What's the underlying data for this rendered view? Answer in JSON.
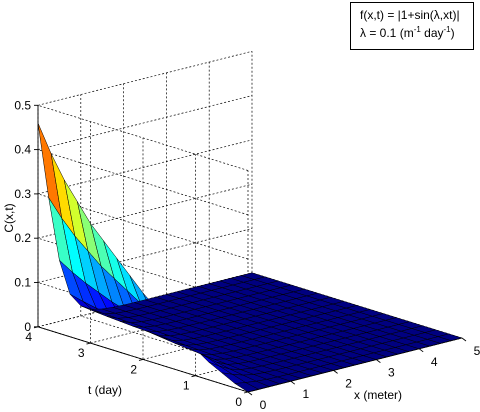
{
  "chart_data": {
    "type": "surface",
    "title": "",
    "xlabel": "x (meter)",
    "ylabel": "t (day)",
    "zlabel": "C(x,t)",
    "x": [
      0,
      0.25,
      0.5,
      0.75,
      1.0,
      1.25,
      1.5,
      1.75,
      2.0,
      2.25,
      2.5,
      2.75,
      3.0,
      3.25,
      3.5,
      3.75,
      4.0,
      4.25,
      4.5,
      4.75,
      5.0
    ],
    "t": [
      0,
      0.25,
      0.5,
      0.75,
      1.0,
      1.25,
      1.5,
      1.75,
      2.0,
      2.25,
      2.5,
      2.75,
      3.0,
      3.25,
      3.5,
      3.75,
      4.0
    ],
    "boundary_x0": [
      0.0,
      0.01,
      0.025,
      0.04,
      0.06,
      0.08,
      0.1,
      0.125,
      0.15,
      0.18,
      0.21,
      0.24,
      0.27,
      0.31,
      0.35,
      0.4,
      0.46
    ],
    "decay_x": [
      1.0,
      0.62,
      0.3,
      0.12,
      0.05,
      0.02,
      0.008,
      0.003,
      0.001,
      0.0,
      0.0,
      0.0,
      0.0,
      0.0,
      0.0,
      0.0,
      0.0,
      0.0,
      0.0,
      0.0,
      0.0
    ],
    "xlim": [
      0,
      5
    ],
    "ylim": [
      0,
      4
    ],
    "zlim": [
      0,
      0.5
    ],
    "xticks": [
      "0",
      "1",
      "2",
      "3",
      "4",
      "5"
    ],
    "yticks": [
      "0",
      "1",
      "2",
      "3",
      "4"
    ],
    "zticks": [
      "0",
      "0.1",
      "0.2",
      "0.3",
      "0.4",
      "0.5"
    ],
    "colormap": "jet",
    "grid": true,
    "legend_position": "top-right",
    "annotation": {
      "line1": "f(x,t) = |1+sin(λ,xt)|",
      "line2_main": "λ = 0.1 (m",
      "line2_sup1": "-1",
      "line2_mid": " day",
      "line2_sup2": "-1",
      "line2_end": ")"
    }
  }
}
